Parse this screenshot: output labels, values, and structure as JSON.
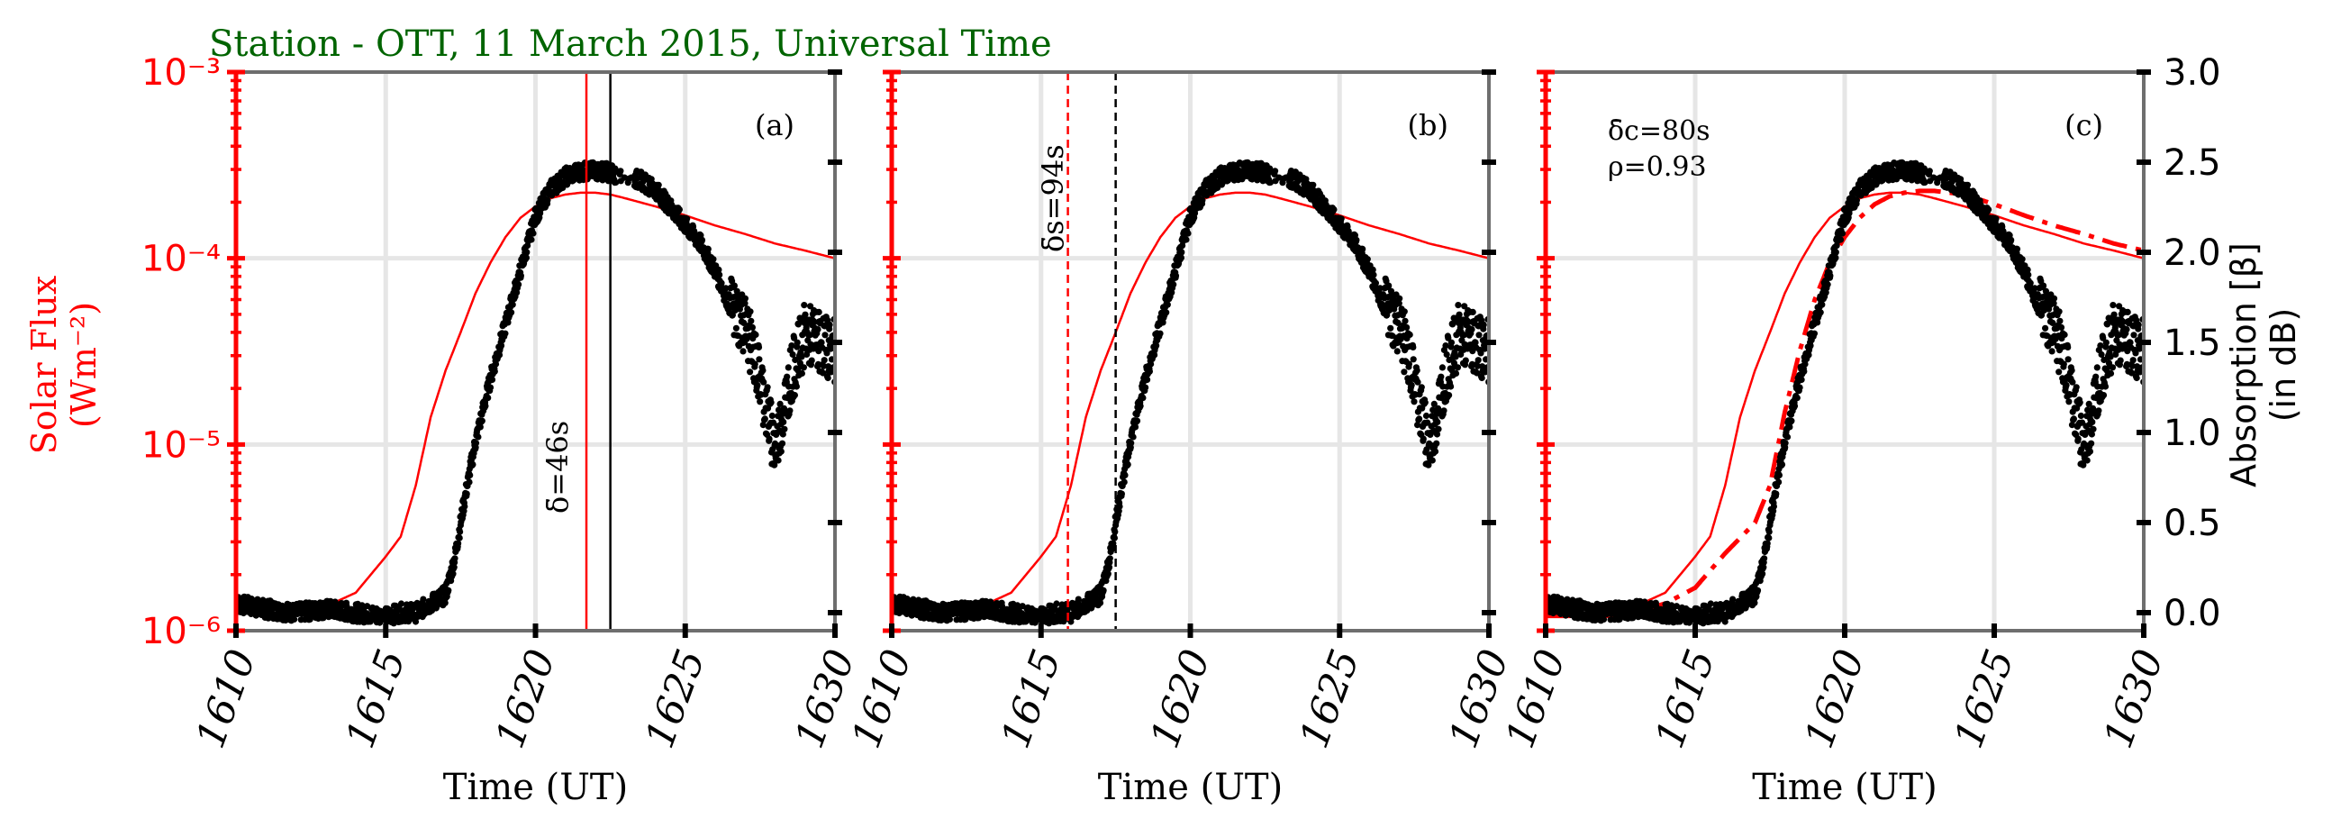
{
  "figure": {
    "title": "Station - OTT, 11 March 2015, Universal Time",
    "title_color": "#006400",
    "left_axis_label_line1": "Solar Flux",
    "left_axis_label_line2": "(Wm⁻²)",
    "right_axis_label_line1": "Absorption [β]",
    "right_axis_label_line2": "(in dB)",
    "flux_color": "#ff0000",
    "absorption_color": "#000000",
    "spine_color": "#6e6e6e",
    "grid_color": "#e6e6e6",
    "annotations": {
      "a_delta": "δ̄=46s",
      "b_delta": "δ̄s=94s",
      "c_delta_c": "δ̄c=80s",
      "c_rho": "ρ=0.93"
    }
  },
  "chart_data": [
    {
      "type": "line",
      "panel_label": "(a)",
      "xlabel": "Time (UT)",
      "x_ticks": [
        "1610",
        "1615",
        "1620",
        "1625",
        "1630"
      ],
      "xlim": [
        1610,
        1630
      ],
      "y_left": {
        "scale": "log",
        "ylim": [
          1e-06,
          0.001
        ],
        "ticks": [
          "10⁻⁶",
          "10⁻⁵",
          "10⁻⁴",
          "10⁻³"
        ]
      },
      "y_right": {
        "ylim": [
          -0.1,
          3.0
        ],
        "ticks": [
          "0.0",
          "0.5",
          "1.0",
          "1.5",
          "2.0",
          "2.5",
          "3.0"
        ]
      },
      "series": [
        {
          "kind": "solar_flux",
          "x": [
            1610,
            1611,
            1612,
            1613,
            1614,
            1615,
            1615.5,
            1616,
            1616.5,
            1617,
            1617.5,
            1618,
            1618.5,
            1619,
            1619.5,
            1620,
            1620.5,
            1621,
            1621.5,
            1622,
            1622.5,
            1623,
            1624,
            1625,
            1626,
            1627,
            1628,
            1629,
            1630
          ],
          "y": [
            1.4e-06,
            1.35e-06,
            1.3e-06,
            1.35e-06,
            1.6e-06,
            2.5e-06,
            3.2e-06,
            6e-06,
            1.4e-05,
            2.5e-05,
            4e-05,
            6.5e-05,
            9.5e-05,
            0.00013,
            0.000165,
            0.00019,
            0.00021,
            0.00022,
            0.000225,
            0.000225,
            0.00022,
            0.00021,
            0.00019,
            0.00017,
            0.00015,
            0.000135,
            0.00012,
            0.00011,
            0.0001
          ]
        },
        {
          "kind": "absorption",
          "x": [
            1610,
            1611,
            1612,
            1613,
            1614,
            1615,
            1615.5,
            1616,
            1616.5,
            1617,
            1617.3,
            1617.6,
            1618,
            1618.5,
            1619,
            1619.5,
            1620,
            1620.5,
            1621,
            1621.5,
            1622,
            1622.3,
            1623.5,
            1624,
            1624.5,
            1625,
            1625.5,
            1626,
            1626.5,
            1627,
            1627.5,
            1628,
            1628.5,
            1629,
            1629.5,
            1630
          ],
          "y": [
            0.05,
            0.02,
            0.0,
            0.02,
            0.0,
            -0.02,
            0.0,
            0.0,
            0.05,
            0.1,
            0.3,
            0.6,
            0.95,
            1.3,
            1.6,
            1.9,
            2.2,
            2.35,
            2.42,
            2.45,
            2.45,
            2.45,
            2.4,
            2.35,
            2.25,
            2.15,
            2.05,
            1.9,
            1.7,
            1.6,
            1.3,
            0.9,
            1.3,
            1.55,
            1.5,
            1.45
          ]
        }
      ],
      "vlines": [
        {
          "x": 1621.7,
          "color": "#ff0000",
          "style": "solid"
        },
        {
          "x": 1622.5,
          "color": "#000000",
          "style": "solid"
        }
      ]
    },
    {
      "type": "line",
      "panel_label": "(b)",
      "xlabel": "Time (UT)",
      "x_ticks": [
        "1610",
        "1615",
        "1620",
        "1625",
        "1630"
      ],
      "xlim": [
        1610,
        1630
      ],
      "y_left": {
        "scale": "log",
        "ylim": [
          1e-06,
          0.001
        ]
      },
      "y_right": {
        "ylim": [
          -0.1,
          3.0
        ]
      },
      "series": [
        {
          "kind": "solar_flux",
          "x": [
            1610,
            1611,
            1612,
            1613,
            1614,
            1615,
            1615.5,
            1616,
            1616.5,
            1617,
            1617.5,
            1618,
            1618.5,
            1619,
            1619.5,
            1620,
            1620.5,
            1621,
            1621.5,
            1622,
            1622.5,
            1623,
            1624,
            1625,
            1626,
            1627,
            1628,
            1629,
            1630
          ],
          "y": [
            1.4e-06,
            1.35e-06,
            1.3e-06,
            1.35e-06,
            1.6e-06,
            2.5e-06,
            3.2e-06,
            6e-06,
            1.4e-05,
            2.5e-05,
            4e-05,
            6.5e-05,
            9.5e-05,
            0.00013,
            0.000165,
            0.00019,
            0.00021,
            0.00022,
            0.000225,
            0.000225,
            0.00022,
            0.00021,
            0.00019,
            0.00017,
            0.00015,
            0.000135,
            0.00012,
            0.00011,
            0.0001
          ]
        },
        {
          "kind": "absorption",
          "x": [
            1610,
            1611,
            1612,
            1613,
            1614,
            1615,
            1615.5,
            1616,
            1616.5,
            1617,
            1617.3,
            1617.6,
            1618,
            1618.5,
            1619,
            1619.5,
            1620,
            1620.5,
            1621,
            1621.5,
            1622,
            1622.3,
            1623.5,
            1624,
            1624.5,
            1625,
            1625.5,
            1626,
            1626.5,
            1627,
            1627.5,
            1628,
            1628.5,
            1629,
            1629.5,
            1630
          ],
          "y": [
            0.05,
            0.02,
            0.0,
            0.02,
            0.0,
            -0.02,
            0.0,
            0.0,
            0.05,
            0.1,
            0.3,
            0.6,
            0.95,
            1.3,
            1.6,
            1.9,
            2.2,
            2.35,
            2.42,
            2.45,
            2.45,
            2.45,
            2.4,
            2.35,
            2.25,
            2.15,
            2.05,
            1.9,
            1.7,
            1.6,
            1.3,
            0.9,
            1.3,
            1.55,
            1.5,
            1.45
          ]
        }
      ],
      "vlines": [
        {
          "x": 1615.9,
          "color": "#ff0000",
          "style": "dashed"
        },
        {
          "x": 1617.5,
          "color": "#000000",
          "style": "dashed"
        }
      ]
    },
    {
      "type": "line",
      "panel_label": "(c)",
      "xlabel": "Time (UT)",
      "x_ticks": [
        "1610",
        "1615",
        "1620",
        "1625",
        "1630"
      ],
      "xlim": [
        1610,
        1630
      ],
      "y_left": {
        "scale": "log",
        "ylim": [
          1e-06,
          0.001
        ]
      },
      "y_right": {
        "ylim": [
          -0.1,
          3.0
        ]
      },
      "series": [
        {
          "kind": "solar_flux",
          "x": [
            1610,
            1611,
            1612,
            1613,
            1614,
            1615,
            1615.5,
            1616,
            1616.5,
            1617,
            1617.5,
            1618,
            1618.5,
            1619,
            1619.5,
            1620,
            1620.5,
            1621,
            1621.5,
            1622,
            1622.5,
            1623,
            1624,
            1625,
            1626,
            1627,
            1628,
            1629,
            1630
          ],
          "y": [
            1.4e-06,
            1.35e-06,
            1.3e-06,
            1.35e-06,
            1.6e-06,
            2.5e-06,
            3.2e-06,
            6e-06,
            1.4e-05,
            2.5e-05,
            4e-05,
            6.5e-05,
            9.5e-05,
            0.00013,
            0.000165,
            0.00019,
            0.00021,
            0.00022,
            0.000225,
            0.000225,
            0.00022,
            0.00021,
            0.00019,
            0.00017,
            0.00015,
            0.000135,
            0.00012,
            0.00011,
            0.0001
          ]
        },
        {
          "kind": "shifted_flux",
          "x": [
            1610,
            1611,
            1612,
            1613,
            1614,
            1615,
            1616,
            1617,
            1617.5,
            1618,
            1618.5,
            1619,
            1619.5,
            1620,
            1620.5,
            1621,
            1621.5,
            1622,
            1622.5,
            1623,
            1624,
            1625,
            1626,
            1627,
            1628,
            1629,
            1630
          ],
          "y": [
            1.2e-06,
            1.2e-06,
            1.2e-06,
            1.25e-06,
            1.4e-06,
            1.7e-06,
            2.6e-06,
            3.8e-06,
            6e-06,
            1.5e-05,
            3.2e-05,
            6e-05,
            9.5e-05,
            0.00013,
            0.000165,
            0.000195,
            0.000215,
            0.000225,
            0.00023,
            0.00023,
            0.00022,
            0.000195,
            0.00017,
            0.00015,
            0.000135,
            0.00012,
            0.00011
          ]
        },
        {
          "kind": "absorption",
          "x": [
            1610,
            1611,
            1612,
            1613,
            1614,
            1615,
            1615.5,
            1616,
            1616.5,
            1617,
            1617.3,
            1617.6,
            1618,
            1618.5,
            1619,
            1619.5,
            1620,
            1620.5,
            1621,
            1621.5,
            1622,
            1622.3,
            1623.5,
            1624,
            1624.5,
            1625,
            1625.5,
            1626,
            1626.5,
            1627,
            1627.5,
            1628,
            1628.5,
            1629,
            1629.5,
            1630
          ],
          "y": [
            0.05,
            0.02,
            0.0,
            0.02,
            0.0,
            -0.02,
            0.0,
            0.0,
            0.05,
            0.1,
            0.3,
            0.6,
            0.95,
            1.3,
            1.6,
            1.9,
            2.2,
            2.35,
            2.42,
            2.45,
            2.45,
            2.45,
            2.4,
            2.35,
            2.25,
            2.15,
            2.05,
            1.9,
            1.7,
            1.6,
            1.3,
            0.9,
            1.3,
            1.55,
            1.5,
            1.45
          ]
        }
      ],
      "vlines": []
    }
  ]
}
